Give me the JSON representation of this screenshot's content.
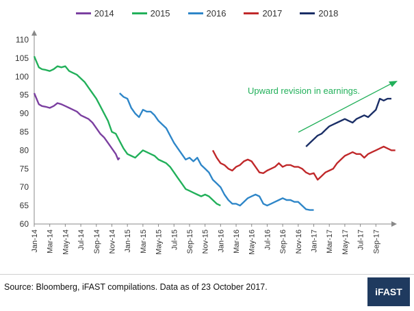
{
  "chart_data": {
    "type": "line",
    "title": "",
    "xlabel": "",
    "ylabel": "",
    "ylim": [
      60,
      110
    ],
    "yticks": [
      60,
      65,
      70,
      75,
      80,
      85,
      90,
      95,
      100,
      105,
      110
    ],
    "x_tick_labels": [
      "Jan-14",
      "Mar-14",
      "May-14",
      "Jul-14",
      "Sep-14",
      "Nov-14",
      "Jan-15",
      "Mar-15",
      "May-15",
      "Jul-15",
      "Sep-15",
      "Nov-15",
      "Jan-16",
      "Mar-16",
      "May-16",
      "Jul-16",
      "Sep-16",
      "Nov-16",
      "Jan-17",
      "Mar-17",
      "May-17",
      "Jul-17",
      "Sep-17"
    ],
    "grid": false,
    "legend_position": "top-center",
    "annotation": {
      "text": "Upward revision in earnings.",
      "color": "#22b05a"
    },
    "series": [
      {
        "name": "2014",
        "color": "#7b3fa0",
        "points": [
          [
            0,
            95.5
          ],
          [
            0.3,
            94
          ],
          [
            0.6,
            92.5
          ],
          [
            1,
            92
          ],
          [
            1.5,
            91.8
          ],
          [
            2,
            91.5
          ],
          [
            2.5,
            92
          ],
          [
            3,
            92.8
          ],
          [
            3.5,
            92.5
          ],
          [
            4,
            92
          ],
          [
            4.5,
            91.5
          ],
          [
            5,
            91
          ],
          [
            5.5,
            90.5
          ],
          [
            6,
            89.5
          ],
          [
            6.5,
            89
          ],
          [
            7,
            88.5
          ],
          [
            7.5,
            87.5
          ],
          [
            8,
            86
          ],
          [
            8.5,
            84.5
          ],
          [
            9,
            83.5
          ],
          [
            9.5,
            82
          ],
          [
            10,
            80.5
          ],
          [
            10.5,
            79
          ],
          [
            10.8,
            77.5
          ],
          [
            11,
            78
          ]
        ]
      },
      {
        "name": "2015",
        "color": "#22b05a",
        "points": [
          [
            0,
            105.5
          ],
          [
            0.3,
            104
          ],
          [
            0.6,
            102.5
          ],
          [
            1,
            102
          ],
          [
            1.5,
            101.8
          ],
          [
            2,
            101.5
          ],
          [
            2.5,
            102
          ],
          [
            3,
            102.8
          ],
          [
            3.5,
            102.5
          ],
          [
            4,
            102.8
          ],
          [
            4.5,
            101.5
          ],
          [
            5,
            101
          ],
          [
            5.5,
            100.5
          ],
          [
            6,
            99.5
          ],
          [
            6.5,
            98.5
          ],
          [
            7,
            97
          ],
          [
            7.5,
            95.5
          ],
          [
            8,
            94
          ],
          [
            8.5,
            92
          ],
          [
            9,
            90
          ],
          [
            9.5,
            88
          ],
          [
            10,
            85
          ],
          [
            10.5,
            84.5
          ],
          [
            11,
            82.5
          ],
          [
            11.5,
            80.5
          ],
          [
            12,
            79
          ],
          [
            12.5,
            78.5
          ],
          [
            13,
            78
          ],
          [
            13.5,
            79
          ],
          [
            14,
            80
          ],
          [
            14.5,
            79.5
          ],
          [
            15,
            79
          ],
          [
            15.5,
            78.5
          ],
          [
            16,
            77.5
          ],
          [
            16.5,
            77
          ],
          [
            17,
            76.5
          ],
          [
            17.5,
            75.5
          ],
          [
            18,
            74
          ],
          [
            18.5,
            72.5
          ],
          [
            19,
            71
          ],
          [
            19.5,
            69.5
          ],
          [
            20,
            69
          ],
          [
            20.5,
            68.5
          ],
          [
            21,
            68
          ],
          [
            21.5,
            67.5
          ],
          [
            22,
            68
          ],
          [
            22.5,
            67.5
          ],
          [
            23,
            66.5
          ],
          [
            23.5,
            65.5
          ],
          [
            24,
            65
          ]
        ]
      },
      {
        "name": "2016",
        "color": "#2e86c8",
        "points": [
          [
            11,
            95.5
          ],
          [
            11.5,
            94.5
          ],
          [
            12,
            94
          ],
          [
            12.5,
            91.5
          ],
          [
            13,
            90
          ],
          [
            13.5,
            89
          ],
          [
            14,
            91
          ],
          [
            14.5,
            90.5
          ],
          [
            15,
            90.5
          ],
          [
            15.5,
            89.5
          ],
          [
            16,
            88
          ],
          [
            16.5,
            87
          ],
          [
            17,
            86
          ],
          [
            17.5,
            84
          ],
          [
            18,
            82
          ],
          [
            18.5,
            80.5
          ],
          [
            19,
            79
          ],
          [
            19.5,
            77.5
          ],
          [
            20,
            78
          ],
          [
            20.5,
            77
          ],
          [
            21,
            78
          ],
          [
            21.5,
            76
          ],
          [
            22,
            75
          ],
          [
            22.5,
            74
          ],
          [
            23,
            72
          ],
          [
            23.5,
            71
          ],
          [
            24,
            70
          ],
          [
            24.5,
            68
          ],
          [
            25,
            66.5
          ],
          [
            25.5,
            65.5
          ],
          [
            26,
            65.5
          ],
          [
            26.5,
            65
          ],
          [
            27,
            66
          ],
          [
            27.5,
            67
          ],
          [
            28,
            67.5
          ],
          [
            28.5,
            68
          ],
          [
            29,
            67.5
          ],
          [
            29.5,
            65.5
          ],
          [
            30,
            65
          ],
          [
            30.5,
            65.5
          ],
          [
            31,
            66
          ],
          [
            31.5,
            66.5
          ],
          [
            32,
            67
          ],
          [
            32.5,
            66.5
          ],
          [
            33,
            66.5
          ],
          [
            33.5,
            66
          ],
          [
            34,
            66
          ],
          [
            34.5,
            65
          ],
          [
            35,
            64
          ],
          [
            35.5,
            63.8
          ],
          [
            36,
            63.8
          ]
        ]
      },
      {
        "name": "2017",
        "color": "#c0282a",
        "points": [
          [
            23,
            80
          ],
          [
            23.5,
            78
          ],
          [
            24,
            76.5
          ],
          [
            24.5,
            76
          ],
          [
            25,
            75
          ],
          [
            25.5,
            74.5
          ],
          [
            26,
            75.5
          ],
          [
            26.5,
            76
          ],
          [
            27,
            77
          ],
          [
            27.5,
            77.5
          ],
          [
            28,
            77
          ],
          [
            28.5,
            75.5
          ],
          [
            29,
            74
          ],
          [
            29.5,
            73.8
          ],
          [
            30,
            74.5
          ],
          [
            30.5,
            75
          ],
          [
            31,
            75.5
          ],
          [
            31.5,
            76.5
          ],
          [
            32,
            75.5
          ],
          [
            32.5,
            76
          ],
          [
            33,
            76
          ],
          [
            33.5,
            75.5
          ],
          [
            34,
            75.5
          ],
          [
            34.5,
            75
          ],
          [
            35,
            74
          ],
          [
            35.5,
            73.5
          ],
          [
            36,
            73.8
          ],
          [
            36.5,
            72
          ],
          [
            37,
            73
          ],
          [
            37.5,
            74
          ],
          [
            38,
            74.5
          ],
          [
            38.5,
            75
          ],
          [
            39,
            76.5
          ],
          [
            39.5,
            77.5
          ],
          [
            40,
            78.5
          ],
          [
            40.5,
            79
          ],
          [
            41,
            79.5
          ],
          [
            41.5,
            79
          ],
          [
            42,
            79
          ],
          [
            42.5,
            78
          ],
          [
            43,
            79
          ],
          [
            43.5,
            79.5
          ],
          [
            44,
            80
          ],
          [
            44.5,
            80.5
          ],
          [
            45,
            81
          ],
          [
            45.5,
            80.5
          ],
          [
            46,
            80
          ],
          [
            46.5,
            80
          ]
        ]
      },
      {
        "name": "2018",
        "color": "#1a2e66",
        "points": [
          [
            35,
            81
          ],
          [
            35.5,
            82
          ],
          [
            36,
            83
          ],
          [
            36.5,
            84
          ],
          [
            37,
            84.5
          ],
          [
            37.5,
            85.5
          ],
          [
            38,
            86.5
          ],
          [
            38.5,
            87
          ],
          [
            39,
            87.5
          ],
          [
            39.5,
            88
          ],
          [
            40,
            88.5
          ],
          [
            40.5,
            88
          ],
          [
            41,
            87.5
          ],
          [
            41.5,
            88.5
          ],
          [
            42,
            89
          ],
          [
            42.5,
            89.5
          ],
          [
            43,
            89
          ],
          [
            43.5,
            90
          ],
          [
            44,
            91
          ],
          [
            44.5,
            94
          ],
          [
            45,
            93.5
          ],
          [
            45.5,
            94
          ],
          [
            46,
            94
          ]
        ]
      }
    ]
  },
  "footer": {
    "source": "Source: Bloomberg, iFAST compilations. Data as of 23 October 2017.",
    "logo": "iFAST"
  }
}
